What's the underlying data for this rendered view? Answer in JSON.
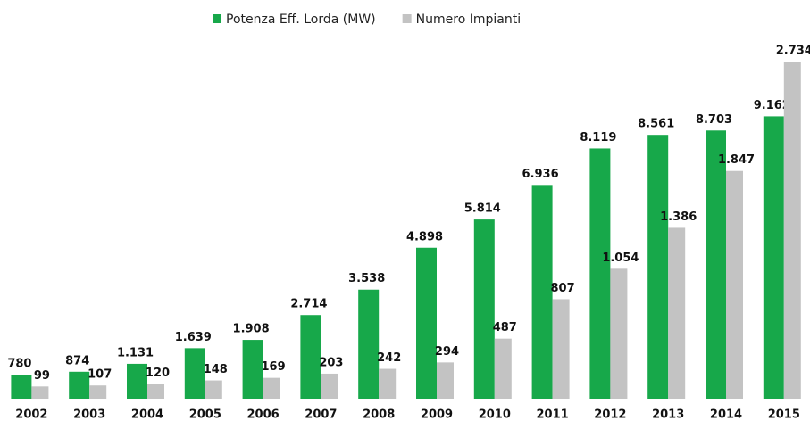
{
  "chart_data": {
    "type": "bar",
    "categories": [
      "2002",
      "2003",
      "2004",
      "2005",
      "2006",
      "2007",
      "2008",
      "2009",
      "2010",
      "2011",
      "2012",
      "2013",
      "2014",
      "2015"
    ],
    "series": [
      {
        "name": "Potenza Eff. Lorda (MW)",
        "color": "#17a84a",
        "values": [
          780,
          874,
          1131,
          1639,
          1908,
          2714,
          3538,
          4898,
          5814,
          6936,
          8119,
          8561,
          8703,
          9162
        ],
        "value_labels": [
          "780",
          "874",
          "1.131",
          "1.639",
          "1.908",
          "2.714",
          "3.538",
          "4.898",
          "5.814",
          "6.936",
          "8.119",
          "8.561",
          "8.703",
          "9.162"
        ]
      },
      {
        "name": "Numero Impianti",
        "color": "#c3c3c3",
        "axis": "y2",
        "values": [
          99,
          107,
          120,
          148,
          169,
          203,
          242,
          294,
          487,
          807,
          1054,
          1386,
          1847,
          2734
        ],
        "value_labels": [
          "99",
          "107",
          "120",
          "148",
          "169",
          "203",
          "242",
          "294",
          "487",
          "807",
          "1.054",
          "1.386",
          "1.847",
          "2.734"
        ]
      }
    ],
    "ylim": [
      0,
      11200
    ],
    "y2lim": [
      0,
      2800
    ],
    "legend": "top"
  }
}
